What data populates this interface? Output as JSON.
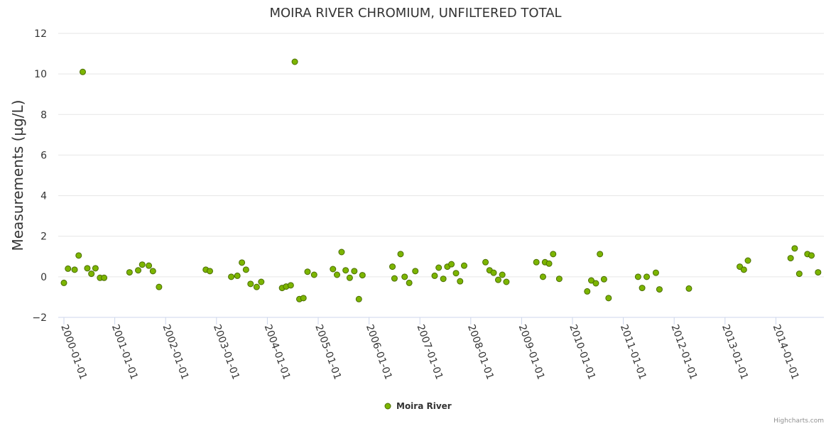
{
  "chart_data": {
    "type": "scatter",
    "title": "MOIRA RIVER CHROMIUM, UNFILTERED TOTAL",
    "xlabel": "",
    "ylabel": "Measurements (µg/L)",
    "ylim": [
      -2,
      12
    ],
    "yticks": [
      "−2",
      "0",
      "2",
      "4",
      "6",
      "8",
      "10",
      "12"
    ],
    "ytick_values": [
      -2,
      0,
      2,
      4,
      6,
      8,
      10,
      12
    ],
    "xlim": [
      1999.9,
      2014.83
    ],
    "xticks": [
      "2000-01-01",
      "2001-01-01",
      "2002-01-01",
      "2003-01-01",
      "2004-01-01",
      "2005-01-01",
      "2006-01-01",
      "2007-01-01",
      "2008-01-01",
      "2009-01-01",
      "2010-01-01",
      "2011-01-01",
      "2012-01-01",
      "2013-01-01",
      "2014-01-01"
    ],
    "xtick_values": [
      2000,
      2001,
      2002,
      2003,
      2004,
      2005,
      2006,
      2007,
      2008,
      2009,
      2010,
      2011,
      2012,
      2013,
      2014
    ],
    "legend": "bottom-center",
    "grid": true,
    "series": [
      {
        "name": "Moira River",
        "color": "#7cb500",
        "stroke": "#4a6d00",
        "x": [
          2000.0,
          2000.08,
          2000.21,
          2000.29,
          2000.37,
          2000.46,
          2000.54,
          2000.62,
          2000.71,
          2000.79,
          2001.29,
          2001.46,
          2001.54,
          2001.67,
          2001.75,
          2001.87,
          2002.79,
          2002.87,
          2003.29,
          2003.41,
          2003.5,
          2003.58,
          2003.67,
          2003.79,
          2003.88,
          2004.29,
          2004.37,
          2004.46,
          2004.54,
          2004.63,
          2004.71,
          2004.79,
          2004.92,
          2005.29,
          2005.37,
          2005.46,
          2005.54,
          2005.62,
          2005.71,
          2005.8,
          2005.87,
          2006.46,
          2006.5,
          2006.62,
          2006.7,
          2006.79,
          2006.91,
          2007.29,
          2007.37,
          2007.46,
          2007.54,
          2007.62,
          2007.71,
          2007.79,
          2007.87,
          2008.29,
          2008.37,
          2008.45,
          2008.54,
          2008.62,
          2008.7,
          2009.29,
          2009.42,
          2009.46,
          2009.54,
          2009.62,
          2009.74,
          2010.29,
          2010.37,
          2010.46,
          2010.54,
          2010.62,
          2010.71,
          2011.29,
          2011.37,
          2011.46,
          2011.64,
          2011.71,
          2012.29,
          2013.29,
          2013.37,
          2013.45,
          2014.29,
          2014.37,
          2014.46,
          2014.62,
          2014.7,
          2014.83
        ],
        "y": [
          -0.3,
          0.4,
          0.35,
          1.05,
          10.1,
          0.42,
          0.15,
          0.42,
          -0.05,
          -0.05,
          0.22,
          0.32,
          0.6,
          0.55,
          0.28,
          -0.5,
          0.35,
          0.28,
          0.0,
          0.05,
          0.7,
          0.35,
          -0.35,
          -0.5,
          -0.25,
          -0.55,
          -0.48,
          -0.42,
          10.6,
          -1.1,
          -1.05,
          0.25,
          0.1,
          0.38,
          0.1,
          1.22,
          0.32,
          -0.05,
          0.28,
          -1.1,
          0.08,
          0.5,
          -0.08,
          1.12,
          0.0,
          -0.3,
          0.28,
          0.05,
          0.45,
          -0.1,
          0.5,
          0.62,
          0.18,
          -0.22,
          0.55,
          0.72,
          0.32,
          0.2,
          -0.15,
          0.1,
          -0.25,
          0.72,
          0.0,
          0.72,
          0.65,
          1.12,
          -0.1,
          -0.72,
          -0.18,
          -0.32,
          1.12,
          -0.12,
          -1.05,
          0.0,
          -0.55,
          0.0,
          0.2,
          -0.62,
          -0.58,
          0.5,
          0.35,
          0.8,
          0.92,
          1.4,
          0.15,
          1.12,
          1.05,
          0.22
        ]
      }
    ]
  },
  "credits": "Highcharts.com"
}
